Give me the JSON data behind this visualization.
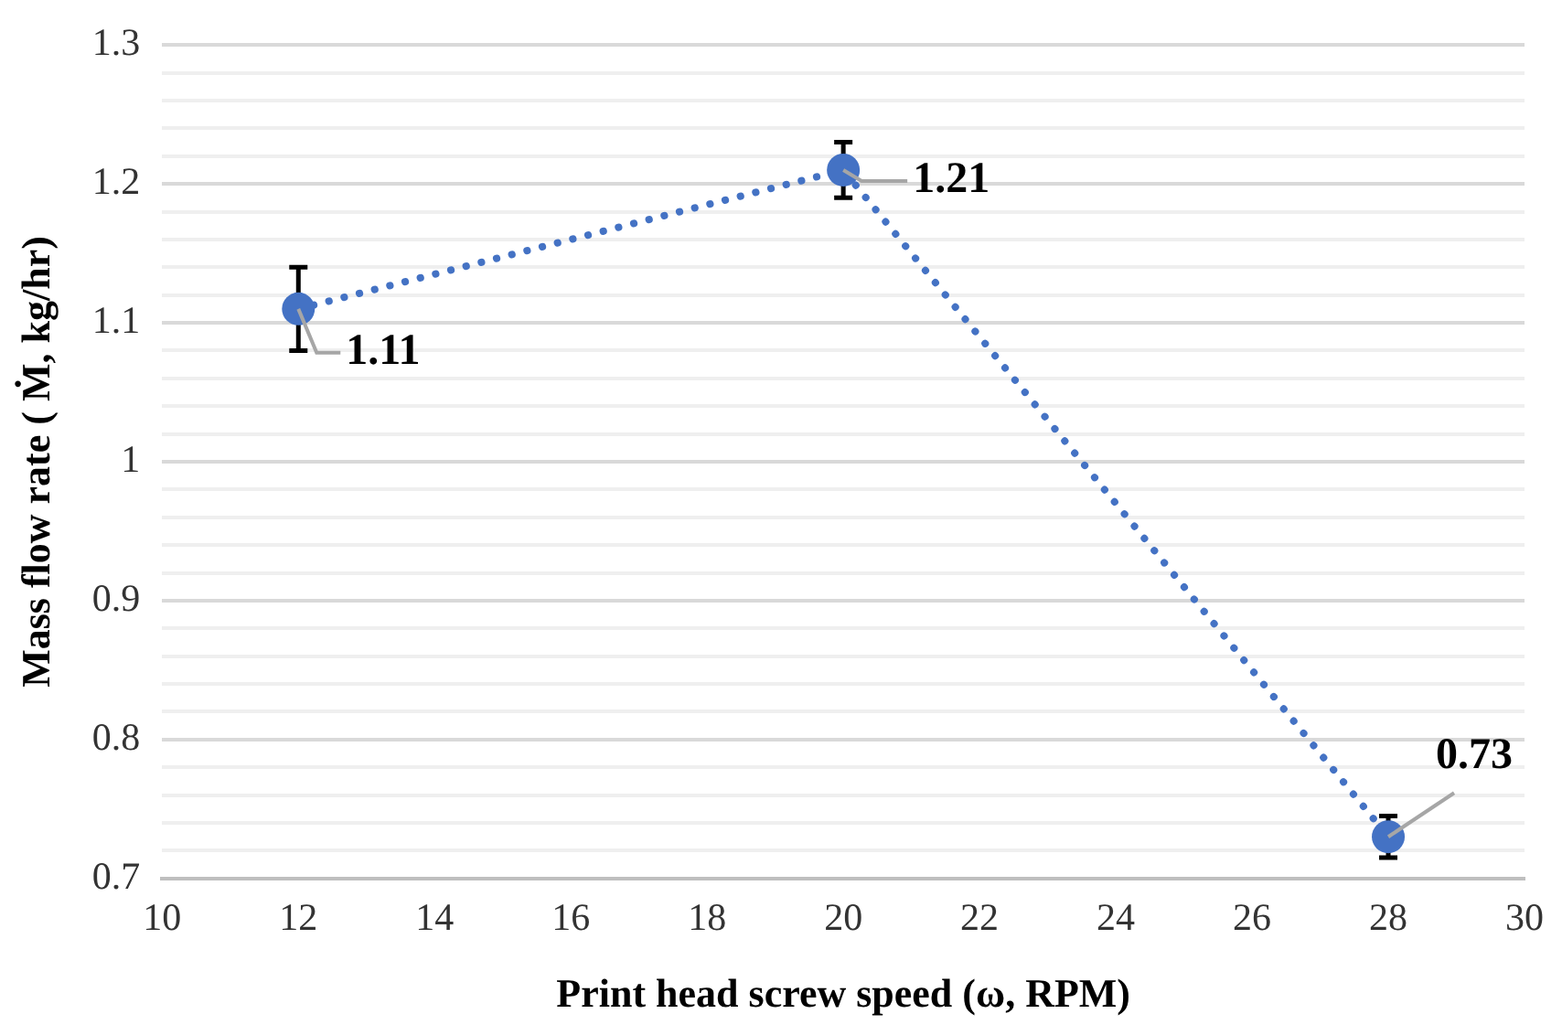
{
  "chart_data": {
    "type": "line",
    "xlabel": "Print head screw speed (ω, RPM)",
    "ylabel": "Mass flow rate ( Ṁ, kg/hr)",
    "x": [
      12,
      20,
      28
    ],
    "series": [
      {
        "color": "#4472c4",
        "values": [
          1.11,
          1.21,
          0.73
        ],
        "errors": [
          0.03,
          0.02,
          0.015
        ]
      }
    ],
    "xlim": [
      10,
      30
    ],
    "xticks": [
      10,
      12,
      14,
      16,
      18,
      20,
      22,
      24,
      26,
      28,
      30
    ],
    "ylim": [
      0.7,
      1.3
    ],
    "yticks": [
      {
        "value": 0.7,
        "label": "0.7"
      },
      {
        "value": 0.72,
        "label": null
      },
      {
        "value": 0.74,
        "label": null
      },
      {
        "value": 0.76,
        "label": null
      },
      {
        "value": 0.78,
        "label": null
      },
      {
        "value": 0.8,
        "label": "0.8"
      },
      {
        "value": 0.82,
        "label": null
      },
      {
        "value": 0.84,
        "label": null
      },
      {
        "value": 0.86,
        "label": null
      },
      {
        "value": 0.88,
        "label": null
      },
      {
        "value": 0.9,
        "label": "0.9"
      },
      {
        "value": 0.92,
        "label": null
      },
      {
        "value": 0.94,
        "label": null
      },
      {
        "value": 0.96,
        "label": null
      },
      {
        "value": 0.98,
        "label": null
      },
      {
        "value": 1,
        "label": "1"
      },
      {
        "value": 1.02,
        "label": null
      },
      {
        "value": 1.04,
        "label": null
      },
      {
        "value": 1.06,
        "label": null
      },
      {
        "value": 1.08,
        "label": null
      },
      {
        "value": 1.1,
        "label": "1.1"
      },
      {
        "value": 1.12,
        "label": null
      },
      {
        "value": 1.14,
        "label": null
      },
      {
        "value": 1.16,
        "label": null
      },
      {
        "value": 1.18,
        "label": null
      },
      {
        "value": 1.2,
        "label": "1.2"
      },
      {
        "value": 1.22,
        "label": null
      },
      {
        "value": 1.24,
        "label": null
      },
      {
        "value": 1.26,
        "label": null
      },
      {
        "value": 1.28,
        "label": null
      },
      {
        "value": 1.3,
        "label": "1.3"
      }
    ],
    "grid": "y",
    "legend": false,
    "marker": "circle",
    "line_style": "dotted",
    "data_labels": true
  }
}
